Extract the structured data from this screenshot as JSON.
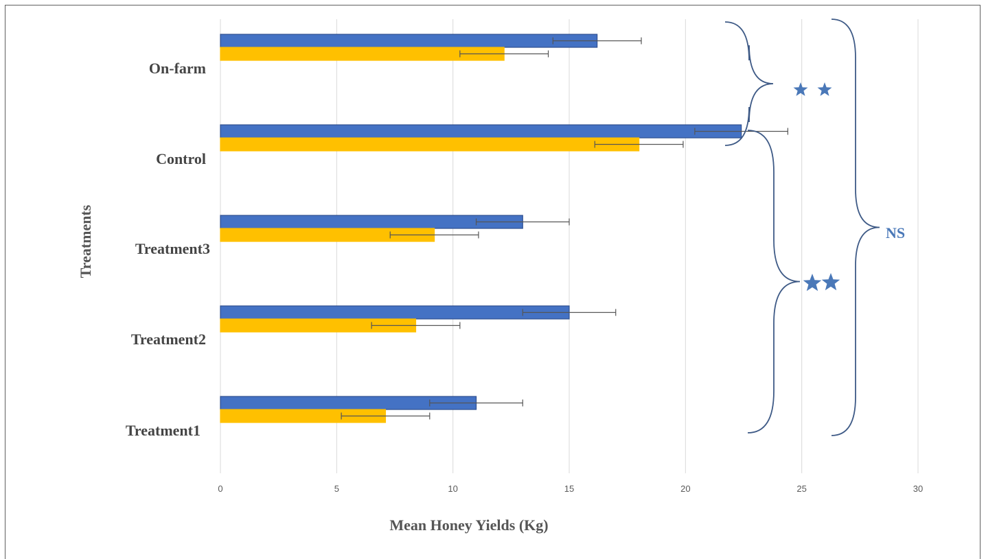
{
  "chart_data": {
    "type": "bar",
    "orientation": "horizontal",
    "categories": [
      "On-farm",
      "Control",
      "Treatment3",
      "Treatment2",
      "Treatment1"
    ],
    "series": [
      {
        "color": "#4472c4",
        "values": [
          16.2,
          22.4,
          13.0,
          15.0,
          11.0
        ],
        "errors": [
          1.9,
          2.0,
          2.0,
          2.0,
          2.0
        ]
      },
      {
        "color": "#ffc000",
        "values": [
          12.2,
          18.0,
          9.2,
          8.4,
          7.1
        ],
        "errors": [
          1.9,
          1.9,
          1.9,
          1.9,
          1.9
        ]
      }
    ],
    "xlabel": "Mean Honey Yields (Kg)",
    "ylabel": "Treatments",
    "xlim": [
      0,
      30
    ],
    "xticks": [
      "0",
      "5",
      "10",
      "15",
      "20",
      "25",
      "30"
    ],
    "grid": "vertical",
    "annotations": {
      "upper_bracket": {
        "categories": [
          "On-farm",
          "Control"
        ],
        "symbol": "star",
        "star_count": 2
      },
      "lower_bracket": {
        "categories": [
          "Control",
          "Treatment3",
          "Treatment2",
          "Treatment1"
        ],
        "symbol": "star",
        "star_count": 2
      },
      "outer_bracket": {
        "categories": [
          "On-farm",
          "Control",
          "Treatment3",
          "Treatment2",
          "Treatment1"
        ],
        "label": "NS"
      },
      "color": "#4a78b8"
    }
  }
}
